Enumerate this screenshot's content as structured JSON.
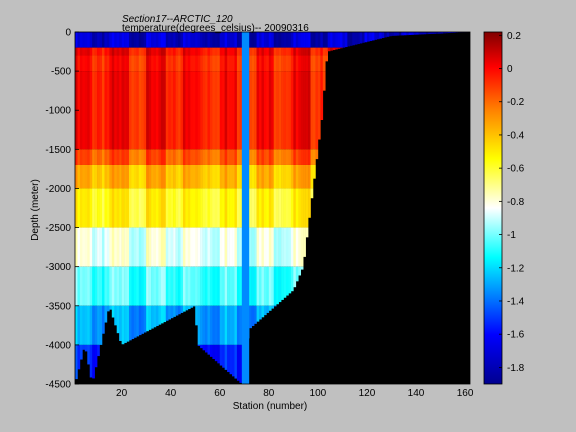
{
  "chart_data": {
    "type": "heatmap",
    "title_line1": "Section17--ARCTIC_120",
    "title_line2": "temperature(degrees_celsius)-- 20090316",
    "xlabel": "Station (number)",
    "ylabel": "Depth (meter)",
    "xlim": [
      1,
      162
    ],
    "ylim": [
      -4500,
      0
    ],
    "xticks": [
      "20",
      "40",
      "60",
      "80",
      "100",
      "120",
      "140",
      "160"
    ],
    "xtick_values": [
      20,
      40,
      60,
      80,
      100,
      120,
      140,
      160
    ],
    "yticks": [
      "0",
      "-500",
      "-1000",
      "-1500",
      "-2000",
      "-2500",
      "-3000",
      "-3500",
      "-4000",
      "-4500"
    ],
    "ytick_values": [
      0,
      -500,
      -1000,
      -1500,
      -2000,
      -2500,
      -3000,
      -3500,
      -4000,
      -4500
    ],
    "colorbar": {
      "range": [
        -1.9,
        0.22
      ],
      "ticks": [
        "0.2",
        "0",
        "-0.2",
        "-0.4",
        "-0.6",
        "-0.8",
        "-1",
        "-1.2",
        "-1.4",
        "-1.6",
        "-1.8"
      ],
      "tick_values": [
        0.2,
        0,
        -0.2,
        -0.4,
        -0.6,
        -0.8,
        -1,
        -1.2,
        -1.4,
        -1.6,
        -1.8
      ]
    },
    "colormap": [
      "#00008f",
      "#0000ff",
      "#00ffff",
      "#ffffff",
      "#ffff00",
      "#ff8000",
      "#ff0000",
      "#800000"
    ],
    "colormap_stops": [
      0,
      0.14,
      0.36,
      0.5,
      0.64,
      0.78,
      0.9,
      1
    ],
    "missing_color": "#000000",
    "surface_layer": {
      "depth_bottom": -200,
      "temperature": -1.75
    },
    "layers": [
      {
        "top": -200,
        "bottom": -300,
        "temperature": 0.0
      },
      {
        "top": -300,
        "bottom": -500,
        "temperature": -0.05
      },
      {
        "top": -500,
        "bottom": -1500,
        "temperature": -0.02
      },
      {
        "top": -1500,
        "bottom": -1700,
        "temperature": -0.17
      },
      {
        "top": -1700,
        "bottom": -2000,
        "temperature": -0.38
      },
      {
        "top": -2000,
        "bottom": -2500,
        "temperature": -0.55
      },
      {
        "top": -2500,
        "bottom": -3000,
        "temperature": -0.85
      },
      {
        "top": -3000,
        "bottom": -3500,
        "temperature": -1.05
      },
      {
        "top": -3500,
        "bottom": -4000,
        "temperature": -1.3
      },
      {
        "top": -4000,
        "bottom": -4500,
        "temperature": -1.55
      }
    ],
    "bottom_depth_profile": [
      {
        "station": 1,
        "depth": -4500
      },
      {
        "station": 5,
        "depth": -4000
      },
      {
        "station": 8,
        "depth": -4500
      },
      {
        "station": 15,
        "depth": -3500
      },
      {
        "station": 20,
        "depth": -4000
      },
      {
        "station": 50,
        "depth": -3500
      },
      {
        "station": 51,
        "depth": -4000
      },
      {
        "station": 69,
        "depth": -4500
      },
      {
        "station": 72,
        "depth": -3800
      },
      {
        "station": 90,
        "depth": -3300
      },
      {
        "station": 94,
        "depth": -3000
      },
      {
        "station": 96,
        "depth": -2500
      },
      {
        "station": 98,
        "depth": -2000
      },
      {
        "station": 100,
        "depth": -1500
      },
      {
        "station": 102,
        "depth": -1000
      },
      {
        "station": 103,
        "depth": -500
      },
      {
        "station": 104,
        "depth": -250
      },
      {
        "station": 130,
        "depth": -50
      },
      {
        "station": 162,
        "depth": 0
      }
    ],
    "vertical_band": {
      "station_start": 69,
      "station_end": 72,
      "temperature": -1.35
    }
  }
}
